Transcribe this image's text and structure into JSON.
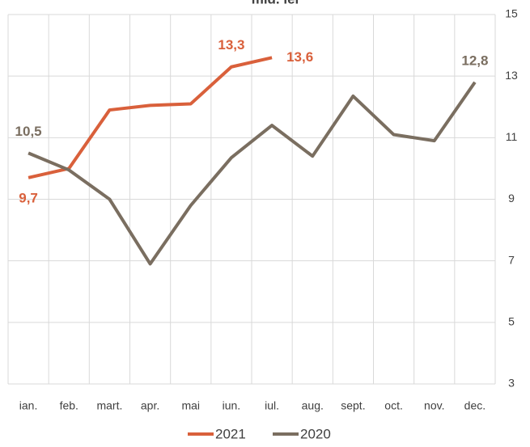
{
  "chart_data": {
    "type": "line",
    "title": "mld. lei",
    "categories": [
      "ian.",
      "feb.",
      "mart.",
      "apr.",
      "mai",
      "iun.",
      "iul.",
      "aug.",
      "sept.",
      "oct.",
      "nov.",
      "dec."
    ],
    "series": [
      {
        "name": "2021",
        "color": "#d9603b",
        "values": [
          9.7,
          10.0,
          11.9,
          12.05,
          12.1,
          13.3,
          13.6,
          null,
          null,
          null,
          null,
          null
        ],
        "value_labels": [
          "9,7",
          null,
          null,
          null,
          null,
          "13,3",
          "13,6",
          null,
          null,
          null,
          null,
          null
        ]
      },
      {
        "name": "2020",
        "color": "#7a6e60",
        "values": [
          10.5,
          9.95,
          9.0,
          6.9,
          8.8,
          10.35,
          11.4,
          10.4,
          12.35,
          11.1,
          10.9,
          12.8
        ],
        "value_labels": [
          "10,5",
          null,
          null,
          null,
          null,
          null,
          null,
          null,
          null,
          null,
          null,
          "12,8"
        ]
      }
    ],
    "ylim": [
      3,
      15
    ],
    "yticks": [
      3,
      5,
      7,
      9,
      11,
      13,
      15
    ],
    "y_axis_side": "right",
    "grid": true,
    "legend": "bottom"
  }
}
